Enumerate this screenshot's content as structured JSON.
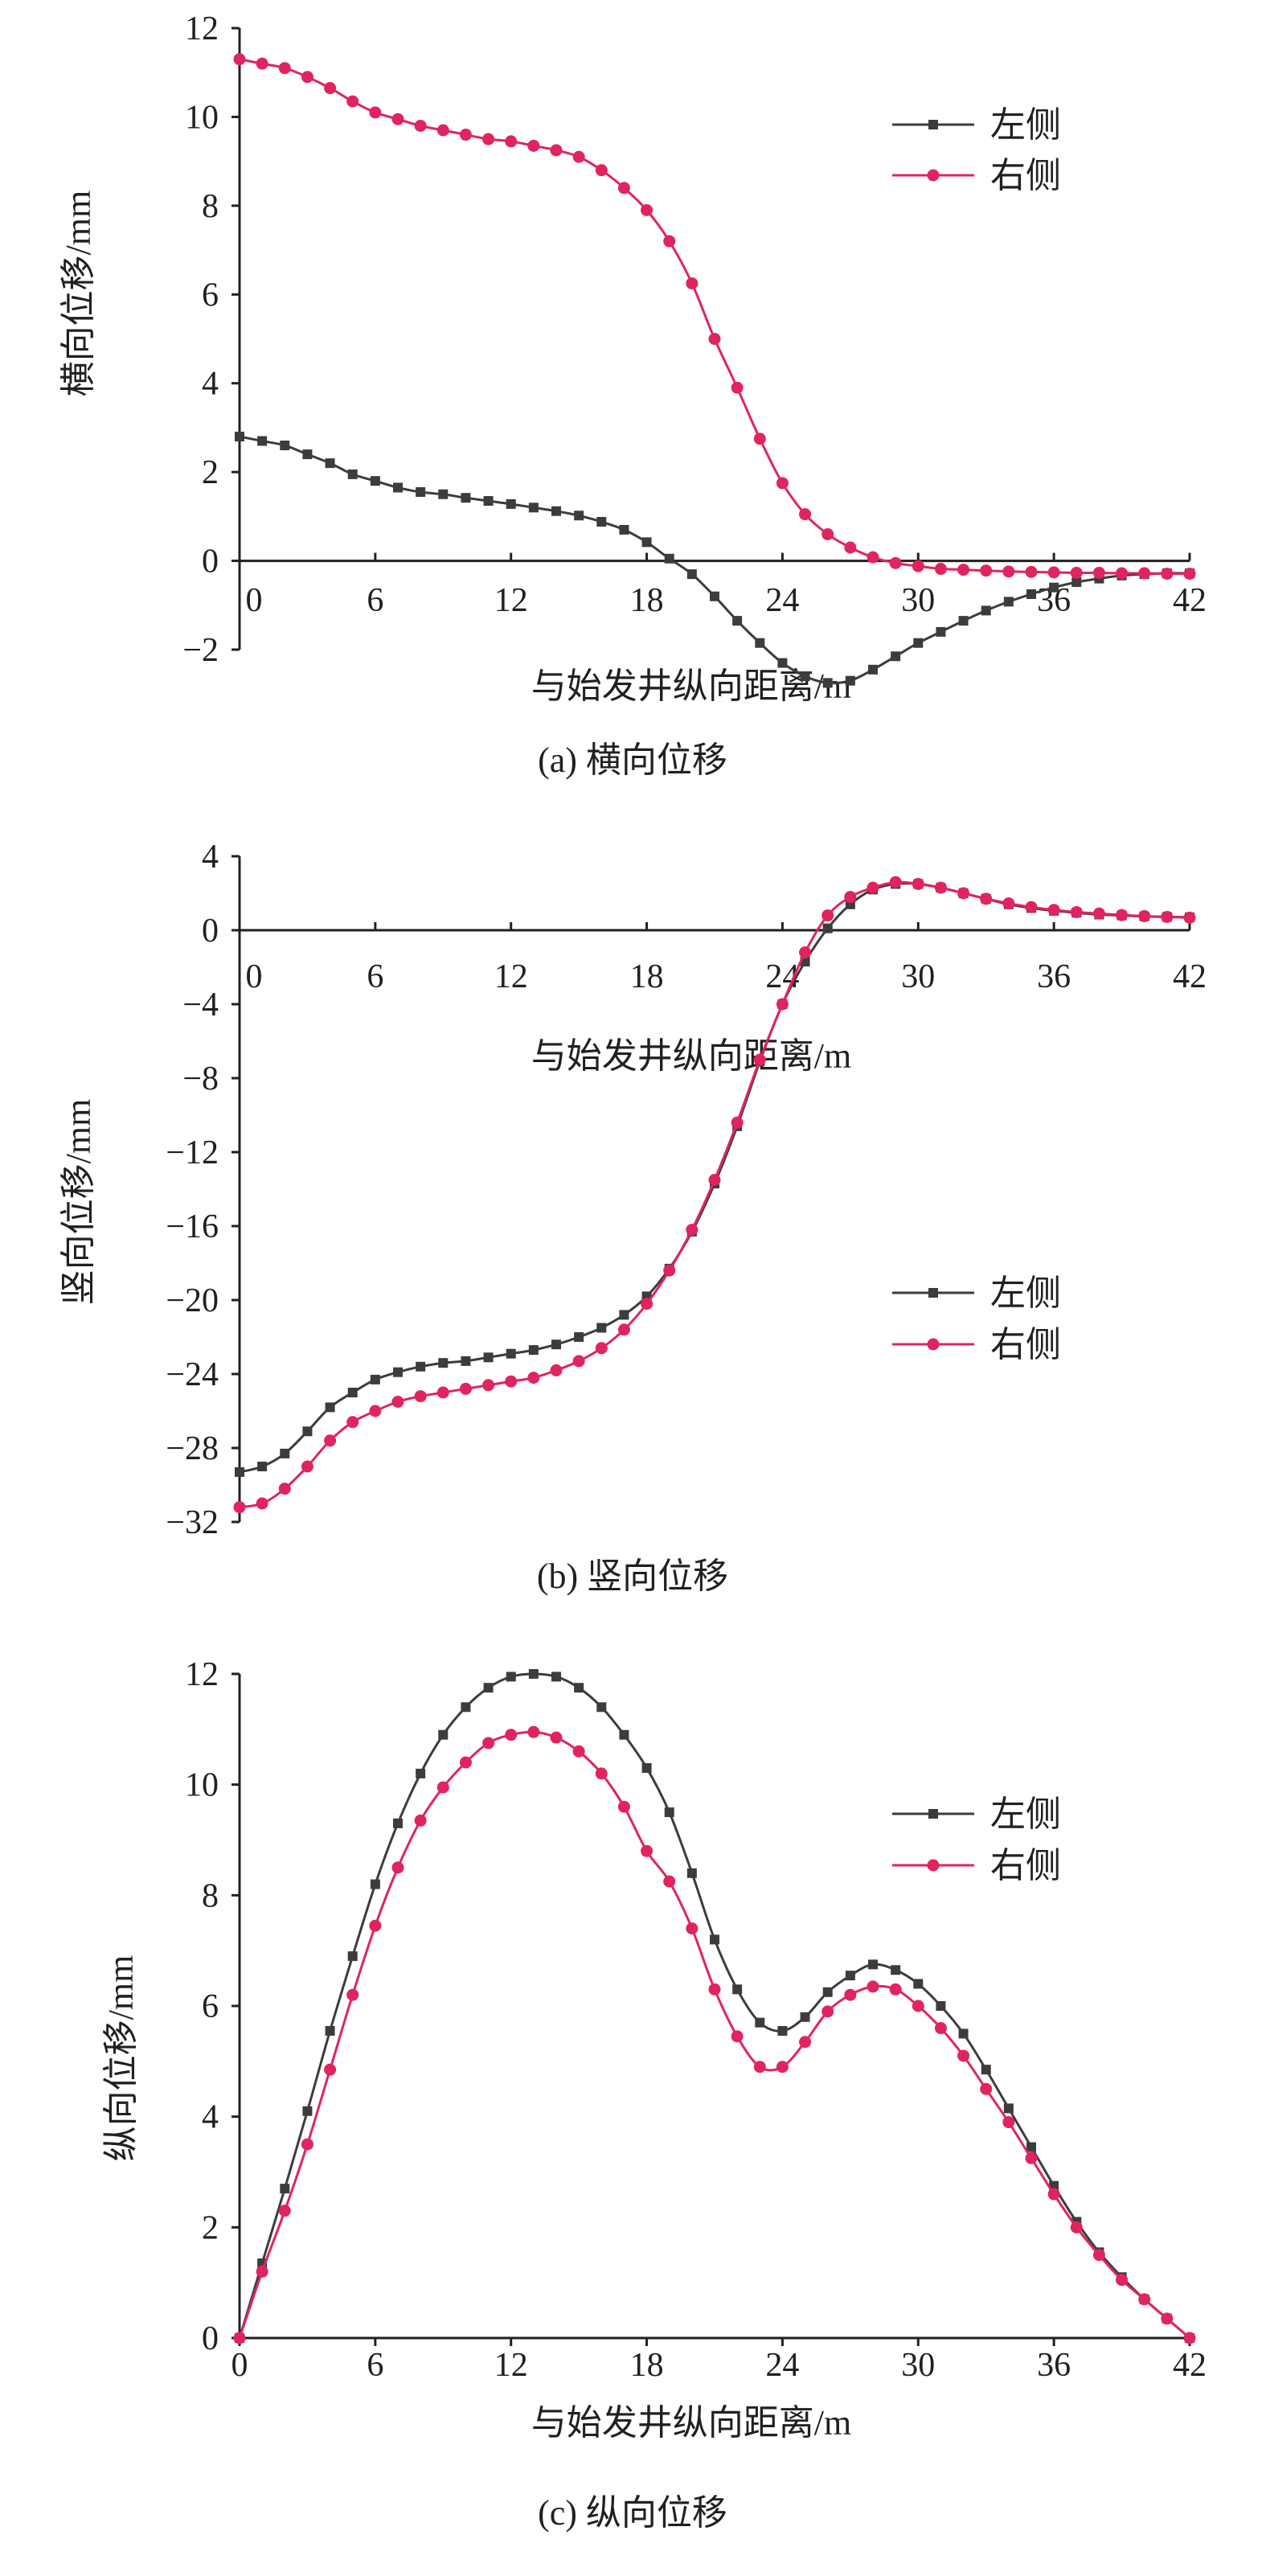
{
  "colors": {
    "left": "#3c3c3c",
    "right": "#e0245e",
    "axis": "#231f20"
  },
  "chart_data": [
    {
      "type": "line",
      "caption": "(a) 横向位移",
      "xlabel": "与始发井纵向距离/m",
      "ylabel": "横向位移/mm",
      "xlim": [
        0,
        42
      ],
      "ylim": [
        -2,
        12
      ],
      "x_ticks": [
        0,
        6,
        12,
        18,
        24,
        30,
        36,
        42
      ],
      "y_ticks": [
        -2,
        0,
        2,
        4,
        6,
        8,
        10,
        12
      ],
      "x_tick_labels": [
        "0",
        "6",
        "12",
        "18",
        "24",
        "30",
        "36",
        "42"
      ],
      "y_tick_labels": [
        "−2",
        "0",
        "2",
        "4",
        "6",
        "8",
        "10",
        "12"
      ],
      "legend": {
        "position": "top-right",
        "entries": [
          "左侧",
          "右侧"
        ]
      },
      "x": [
        0,
        1,
        2,
        3,
        4,
        5,
        6,
        7,
        8,
        9,
        10,
        11,
        12,
        13,
        14,
        15,
        16,
        17,
        18,
        19,
        20,
        21,
        22,
        23,
        24,
        25,
        26,
        27,
        28,
        29,
        30,
        31,
        32,
        33,
        34,
        35,
        36,
        37,
        38,
        39,
        40,
        41,
        42
      ],
      "series": [
        {
          "name": "左侧",
          "marker": "square",
          "values": [
            2.8,
            2.7,
            2.6,
            2.4,
            2.2,
            1.95,
            1.8,
            1.65,
            1.55,
            1.5,
            1.42,
            1.35,
            1.28,
            1.2,
            1.12,
            1.02,
            0.88,
            0.7,
            0.42,
            0.05,
            -0.3,
            -0.8,
            -1.35,
            -1.85,
            -2.3,
            -2.6,
            -2.75,
            -2.7,
            -2.45,
            -2.15,
            -1.85,
            -1.6,
            -1.35,
            -1.12,
            -0.92,
            -0.75,
            -0.6,
            -0.48,
            -0.4,
            -0.33,
            -0.3,
            -0.28,
            -0.28
          ]
        },
        {
          "name": "右侧",
          "marker": "circle",
          "values": [
            11.3,
            11.2,
            11.1,
            10.9,
            10.65,
            10.35,
            10.1,
            9.95,
            9.8,
            9.7,
            9.6,
            9.5,
            9.45,
            9.35,
            9.25,
            9.1,
            8.8,
            8.4,
            7.9,
            7.2,
            6.25,
            5.0,
            3.9,
            2.75,
            1.75,
            1.05,
            0.6,
            0.3,
            0.08,
            -0.05,
            -0.12,
            -0.18,
            -0.2,
            -0.22,
            -0.24,
            -0.25,
            -0.26,
            -0.27,
            -0.27,
            -0.28,
            -0.28,
            -0.29,
            -0.29
          ]
        }
      ]
    },
    {
      "type": "line",
      "caption": "(b) 竖向位移",
      "xlabel": "与始发井纵向距离/m",
      "ylabel": "竖向位移/mm",
      "xlim": [
        0,
        42
      ],
      "ylim": [
        -32,
        4
      ],
      "x_ticks": [
        0,
        6,
        12,
        18,
        24,
        30,
        36,
        42
      ],
      "y_ticks": [
        -32,
        -28,
        -24,
        -20,
        -16,
        -12,
        -8,
        -4,
        0,
        4
      ],
      "x_tick_labels": [
        "0",
        "6",
        "12",
        "18",
        "24",
        "30",
        "36",
        "42"
      ],
      "y_tick_labels": [
        "−32",
        "−28",
        "−24",
        "−20",
        "−16",
        "−12",
        "−8",
        "−4",
        "0",
        "4"
      ],
      "legend": {
        "position": "center-right",
        "entries": [
          "左侧",
          "右侧"
        ]
      },
      "x": [
        0,
        1,
        2,
        3,
        4,
        5,
        6,
        7,
        8,
        9,
        10,
        11,
        12,
        13,
        14,
        15,
        16,
        17,
        18,
        19,
        20,
        21,
        22,
        23,
        24,
        25,
        26,
        27,
        28,
        29,
        30,
        31,
        32,
        33,
        34,
        35,
        36,
        37,
        38,
        39,
        40,
        41,
        42
      ],
      "series": [
        {
          "name": "左侧",
          "marker": "square",
          "values": [
            -29.3,
            -29.0,
            -28.3,
            -27.1,
            -25.8,
            -25.0,
            -24.3,
            -23.9,
            -23.6,
            -23.4,
            -23.3,
            -23.1,
            -22.9,
            -22.7,
            -22.4,
            -22.0,
            -21.5,
            -20.8,
            -19.8,
            -18.3,
            -16.3,
            -13.7,
            -10.6,
            -7.1,
            -4.0,
            -1.7,
            0.1,
            1.4,
            2.2,
            2.5,
            2.5,
            2.3,
            2.0,
            1.7,
            1.4,
            1.2,
            1.05,
            0.95,
            0.85,
            0.8,
            0.75,
            0.72,
            0.7
          ]
        },
        {
          "name": "右侧",
          "marker": "circle",
          "values": [
            -31.2,
            -31.0,
            -30.2,
            -29.0,
            -27.6,
            -26.6,
            -26.0,
            -25.5,
            -25.2,
            -25.0,
            -24.8,
            -24.6,
            -24.4,
            -24.2,
            -23.8,
            -23.3,
            -22.6,
            -21.6,
            -20.2,
            -18.4,
            -16.2,
            -13.5,
            -10.4,
            -7.0,
            -4.0,
            -1.2,
            0.8,
            1.8,
            2.3,
            2.6,
            2.5,
            2.3,
            2.0,
            1.7,
            1.45,
            1.25,
            1.1,
            0.98,
            0.9,
            0.82,
            0.76,
            0.72,
            0.68
          ]
        }
      ]
    },
    {
      "type": "line",
      "caption": "(c) 纵向位移",
      "xlabel": "与始发井纵向距离/m",
      "ylabel": "纵向位移/mm",
      "xlim": [
        0,
        42
      ],
      "ylim": [
        0,
        12
      ],
      "x_ticks": [
        0,
        6,
        12,
        18,
        24,
        30,
        36,
        42
      ],
      "y_ticks": [
        0,
        2,
        4,
        6,
        8,
        10,
        12
      ],
      "x_tick_labels": [
        "0",
        "6",
        "12",
        "18",
        "24",
        "30",
        "36",
        "42"
      ],
      "y_tick_labels": [
        "0",
        "2",
        "4",
        "6",
        "8",
        "10",
        "12"
      ],
      "legend": {
        "position": "top-right",
        "entries": [
          "左侧",
          "右侧"
        ]
      },
      "x": [
        0,
        1,
        2,
        3,
        4,
        5,
        6,
        7,
        8,
        9,
        10,
        11,
        12,
        13,
        14,
        15,
        16,
        17,
        18,
        19,
        20,
        21,
        22,
        23,
        24,
        25,
        26,
        27,
        28,
        29,
        30,
        31,
        32,
        33,
        34,
        35,
        36,
        37,
        38,
        39,
        40,
        41,
        42
      ],
      "series": [
        {
          "name": "左侧",
          "marker": "square",
          "values": [
            0,
            1.35,
            2.7,
            4.1,
            5.55,
            6.9,
            8.2,
            9.3,
            10.2,
            10.9,
            11.4,
            11.75,
            11.95,
            12.0,
            11.95,
            11.75,
            11.4,
            10.9,
            10.3,
            9.5,
            8.4,
            7.2,
            6.3,
            5.7,
            5.55,
            5.8,
            6.25,
            6.55,
            6.75,
            6.65,
            6.4,
            6.0,
            5.5,
            4.85,
            4.15,
            3.45,
            2.75,
            2.1,
            1.55,
            1.1,
            0.7,
            0.35,
            0
          ]
        },
        {
          "name": "右侧",
          "marker": "circle",
          "values": [
            0,
            1.2,
            2.3,
            3.5,
            4.85,
            6.2,
            7.45,
            8.5,
            9.35,
            9.95,
            10.4,
            10.75,
            10.9,
            10.95,
            10.85,
            10.6,
            10.2,
            9.6,
            8.8,
            8.25,
            7.4,
            6.3,
            5.45,
            4.9,
            4.9,
            5.35,
            5.9,
            6.2,
            6.35,
            6.3,
            6.0,
            5.6,
            5.1,
            4.5,
            3.9,
            3.25,
            2.6,
            2.0,
            1.5,
            1.05,
            0.7,
            0.35,
            0
          ]
        }
      ]
    }
  ]
}
